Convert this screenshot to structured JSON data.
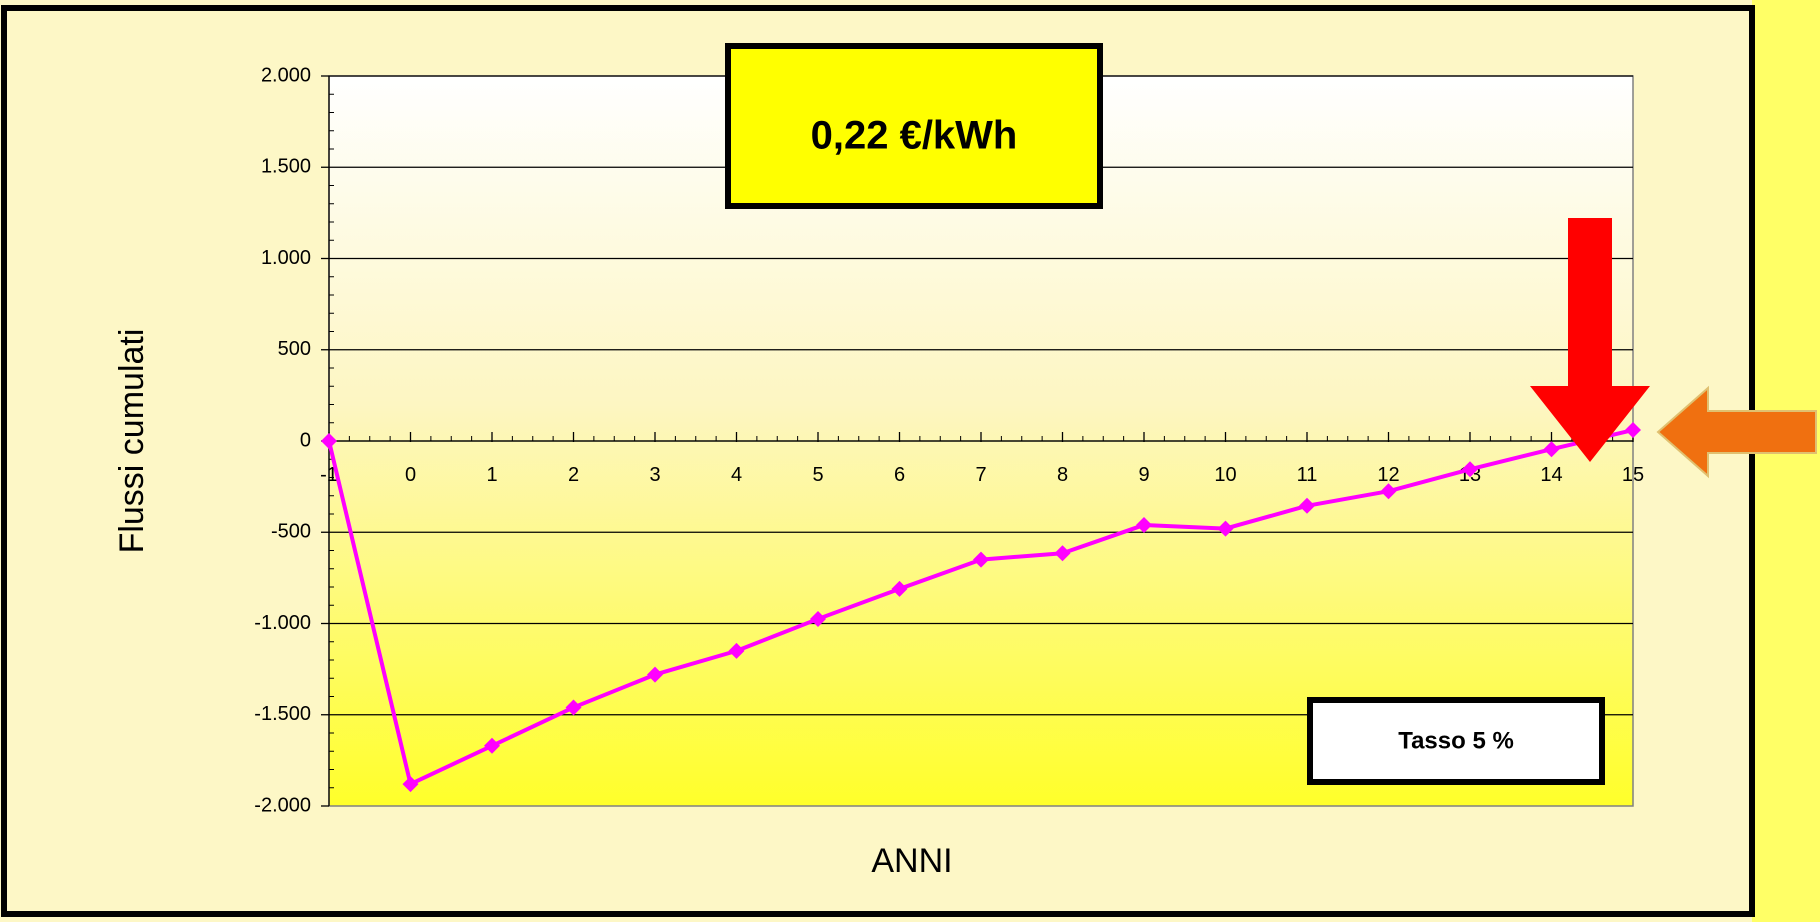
{
  "chart_data": {
    "type": "line",
    "title": "",
    "xlabel": "ANNI",
    "ylabel": "Flussi cumulati",
    "xlim": [
      -1,
      15
    ],
    "ylim": [
      -2000,
      2000
    ],
    "grid": true,
    "x": [
      -1,
      0,
      1,
      2,
      3,
      4,
      5,
      6,
      7,
      8,
      9,
      10,
      11,
      12,
      13,
      14,
      15
    ],
    "x_tick_labels": [
      "-1",
      "0",
      "1",
      "2",
      "3",
      "4",
      "5",
      "6",
      "7",
      "8",
      "9",
      "10",
      "11",
      "12",
      "13",
      "14",
      "15"
    ],
    "y_ticks": [
      2000,
      1500,
      1000,
      500,
      0,
      -500,
      -1000,
      -1500,
      -2000
    ],
    "y_tick_labels": [
      "2.000",
      "1.500",
      "1.000",
      "500",
      "0",
      "-500",
      "-1.000",
      "-1.500",
      "-2.000"
    ],
    "series": [
      {
        "values": [
          0,
          -1880,
          -1670,
          -1460,
          -1280,
          -1150,
          -975,
          -810,
          -650,
          -615,
          -460,
          -480,
          -355,
          -275,
          -155,
          -45,
          60
        ],
        "color": "#ff00ff",
        "marker": "diamond"
      }
    ],
    "annotations": [
      {
        "text": "0,22 €/kWh",
        "style": "yellow-box-bold"
      },
      {
        "text": "Tasso 5 %",
        "style": "white-box-bold"
      }
    ]
  },
  "colors": {
    "slide_background": "#ffff66",
    "panel_background": "#fdf7c6",
    "plot_gradient_top": "#ffffff",
    "plot_gradient_bottom": "#ffff2a",
    "series_line": "#ff00ff",
    "arrow_down": "#ff0000",
    "arrow_left": "#f07010",
    "price_box_fill": "#ffff00"
  },
  "arrows": [
    {
      "name": "red-arrow-down-icon",
      "direction": "down"
    },
    {
      "name": "orange-arrow-left-icon",
      "direction": "left"
    }
  ]
}
